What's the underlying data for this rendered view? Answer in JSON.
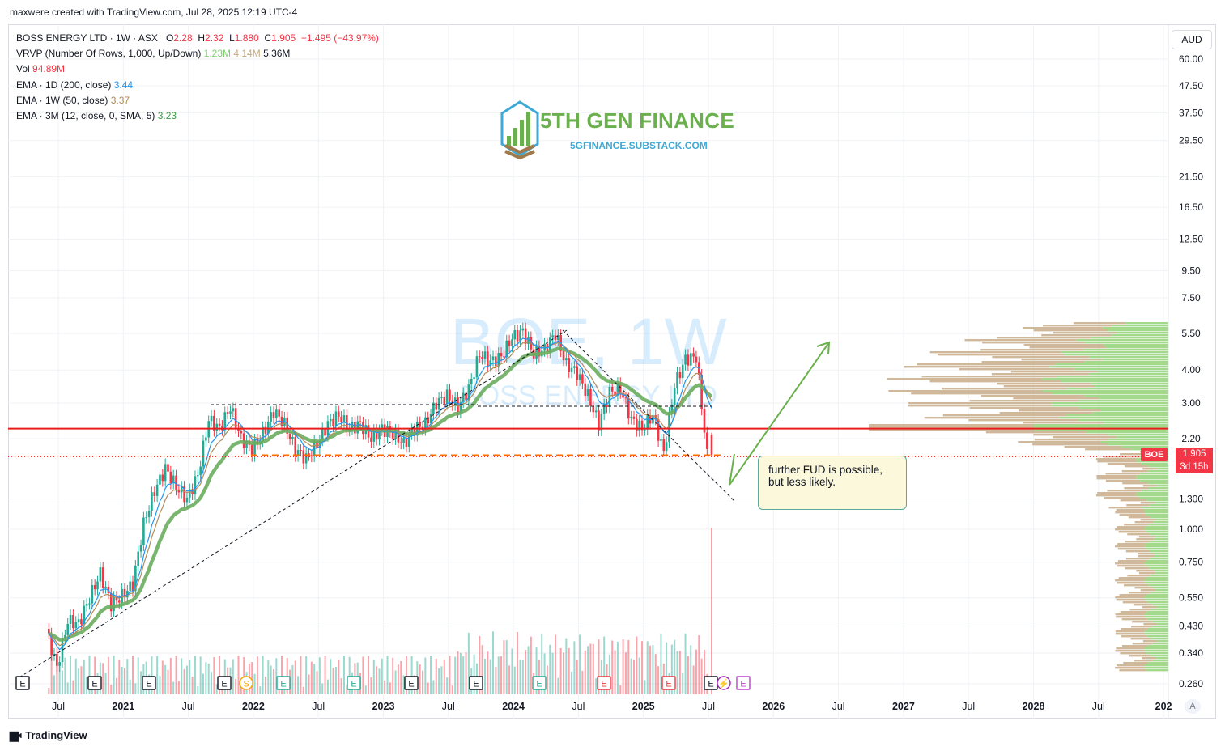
{
  "header": {
    "attribution": "maxwere created with TradingView.com, Jul 28, 2025 12:19 UTC-4"
  },
  "legend": {
    "symbol": "BOSS ENERGY LTD · 1W · ASX",
    "o_label": "O",
    "o_value": "2.28",
    "h_label": "H",
    "h_value": "2.32",
    "l_label": "L",
    "l_value": "1.880",
    "c_label": "C",
    "c_value": "1.905",
    "change": "−1.495 (−43.97%)",
    "vrvp_label": "VRVP (Number Of Rows, 1,000, Up/Down)",
    "vrvp_up": "1.23M",
    "vrvp_down": "4.14M",
    "vrvp_total": "5.36M",
    "vol_label": "Vol",
    "vol_value": "94.89M",
    "ema1_label": "EMA · 1D (200, close)",
    "ema1_value": "3.44",
    "ema2_label": "EMA · 1W (50, close)",
    "ema2_value": "3.37",
    "ema3_label": "EMA · 3M (12, close, 0, SMA, 5)",
    "ema3_value": "3.23"
  },
  "currency": "AUD",
  "auto_scale": "A",
  "branding": {
    "name": "TradingView"
  },
  "logo": {
    "title": "5TH GEN FINANCE",
    "subtitle": "5GFINANCE.SUBSTACK.COM"
  },
  "watermark": {
    "symbol": "BOE, 1W",
    "name": "BOSS ENERGY LTD"
  },
  "price_label": {
    "ticker": "BOE",
    "price": "1.905",
    "countdown": "3d 15h"
  },
  "annotation": "further FUD is possible, but less likely.",
  "colors": {
    "up": "#22ab94",
    "down": "#f23645",
    "ema200": "#2196f3",
    "ema50": "#b08c5a",
    "ema_quarter": "#6aad5e",
    "arrow": "#6ab04c",
    "support_line": "#ea1c1c",
    "close_line": "#ff6d00"
  },
  "chart_data": {
    "type": "candlestick",
    "scale": "log",
    "interval": "1W",
    "grid": true,
    "y_ticks": [
      "60.00",
      "47.50",
      "37.50",
      "29.50",
      "21.50",
      "16.50",
      "12.50",
      "9.50",
      "7.50",
      "5.50",
      "4.00",
      "3.00",
      "2.20",
      "1.300",
      "1.000",
      "0.750",
      "0.550",
      "0.430",
      "0.340",
      "0.260"
    ],
    "x_ticks": [
      "Jul",
      "2021",
      "Jul",
      "2022",
      "Jul",
      "2023",
      "Jul",
      "2024",
      "Jul",
      "2025",
      "Jul",
      "2026",
      "Jul",
      "2027",
      "Jul",
      "2028",
      "Jul",
      "202"
    ],
    "price_path": [
      [
        "2020-06",
        0.42
      ],
      [
        "2020-07",
        0.3
      ],
      [
        "2020-08",
        0.45
      ],
      [
        "2020-09",
        0.44
      ],
      [
        "2020-10",
        0.55
      ],
      [
        "2020-11",
        0.68
      ],
      [
        "2020-12",
        0.52
      ],
      [
        "2021-01",
        0.56
      ],
      [
        "2021-02",
        0.62
      ],
      [
        "2021-03",
        1.05
      ],
      [
        "2021-04",
        1.4
      ],
      [
        "2021-05",
        1.7
      ],
      [
        "2021-06",
        1.45
      ],
      [
        "2021-07",
        1.3
      ],
      [
        "2021-08",
        1.6
      ],
      [
        "2021-09",
        2.6
      ],
      [
        "2021-10",
        2.4
      ],
      [
        "2021-11",
        2.9
      ],
      [
        "2021-12",
        2.2
      ],
      [
        "2022-01",
        2.0
      ],
      [
        "2022-02",
        2.3
      ],
      [
        "2022-03",
        2.8
      ],
      [
        "2022-04",
        2.5
      ],
      [
        "2022-05",
        2.0
      ],
      [
        "2022-06",
        1.85
      ],
      [
        "2022-07",
        2.1
      ],
      [
        "2022-08",
        2.5
      ],
      [
        "2022-09",
        2.7
      ],
      [
        "2022-10",
        2.4
      ],
      [
        "2022-11",
        2.5
      ],
      [
        "2022-12",
        2.2
      ],
      [
        "2023-01",
        2.4
      ],
      [
        "2023-02",
        2.3
      ],
      [
        "2023-03",
        2.1
      ],
      [
        "2023-04",
        2.4
      ],
      [
        "2023-05",
        2.5
      ],
      [
        "2023-06",
        3.0
      ],
      [
        "2023-07",
        3.2
      ],
      [
        "2023-08",
        2.9
      ],
      [
        "2023-09",
        3.4
      ],
      [
        "2023-10",
        4.6
      ],
      [
        "2023-11",
        4.3
      ],
      [
        "2023-12",
        4.5
      ],
      [
        "2024-01",
        5.3
      ],
      [
        "2024-02",
        5.6
      ],
      [
        "2024-03",
        4.6
      ],
      [
        "2024-04",
        4.8
      ],
      [
        "2024-05",
        5.5
      ],
      [
        "2024-06",
        4.2
      ],
      [
        "2024-07",
        3.9
      ],
      [
        "2024-08",
        3.2
      ],
      [
        "2024-09",
        2.5
      ],
      [
        "2024-10",
        3.3
      ],
      [
        "2024-11",
        3.4
      ],
      [
        "2024-12",
        2.6
      ],
      [
        "2025-01",
        2.4
      ],
      [
        "2025-02",
        2.7
      ],
      [
        "2025-03",
        1.95
      ],
      [
        "2025-04",
        3.5
      ],
      [
        "2025-05",
        4.4
      ],
      [
        "2025-06",
        4.5
      ],
      [
        "2025-07",
        1.905
      ]
    ],
    "horizontal_levels": {
      "support": 2.4,
      "last_close": 1.905
    },
    "events": [
      "E",
      "E",
      "E",
      "E",
      "S",
      "E",
      "E",
      "E",
      "E",
      "E",
      "E",
      "E",
      "E",
      "⚡",
      "E"
    ]
  }
}
